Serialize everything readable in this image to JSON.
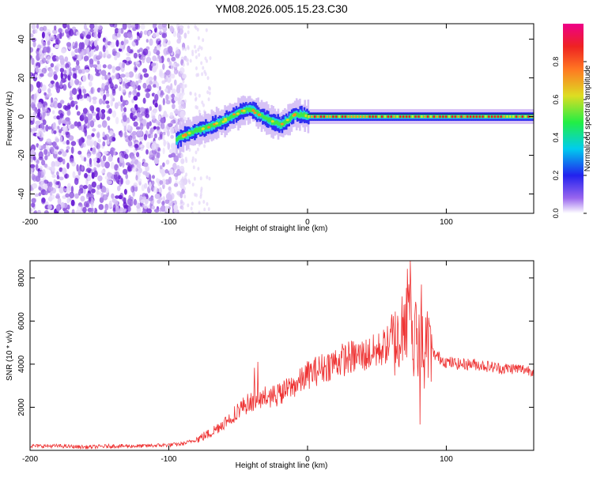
{
  "chart_data": [
    {
      "type": "heatmap",
      "title": "YM08.2026.005.15.23.C30",
      "xlabel": "Height of straight line (km)",
      "ylabel": "Frequency (Hz)",
      "xlim": [
        -200,
        163
      ],
      "ylim": [
        -50,
        48
      ],
      "xticks": [
        "-200",
        "-100",
        "0",
        "100"
      ],
      "yticks": [
        "40",
        "20",
        "0",
        "-20",
        "-40"
      ],
      "colorbar": {
        "label": "Normalized spectral amplitude",
        "range": [
          0,
          1
        ],
        "ticks": [
          "0.0",
          "0.2",
          "0.4",
          "0.6",
          "0.8"
        ]
      },
      "ridge": {
        "x": [
          -95,
          -90,
          -80,
          -70,
          -60,
          -50,
          -42,
          -35,
          -30,
          -25,
          -20,
          -15,
          -10,
          -5,
          0,
          163
        ],
        "y": [
          -12,
          -10,
          -7,
          -5,
          -2,
          2,
          4,
          1,
          -1,
          -3,
          -4,
          -2,
          1,
          1,
          0,
          0
        ]
      }
    },
    {
      "type": "line",
      "xlabel": "Height of straight line (km)",
      "ylabel": "SNR (10 * v/v)",
      "xlim": [
        -200,
        163
      ],
      "ylim": [
        0,
        8800
      ],
      "xticks": [
        "-200",
        "-100",
        "0",
        "100"
      ],
      "yticks": [
        "2000",
        "4000",
        "6000",
        "8000"
      ],
      "series": [
        {
          "name": "SNR",
          "color": "#ee3333",
          "x": [
            -200,
            -180,
            -160,
            -140,
            -120,
            -100,
            -90,
            -80,
            -70,
            -60,
            -55,
            -50,
            -45,
            -40,
            -35,
            -30,
            -25,
            -20,
            -15,
            -10,
            -5,
            0,
            10,
            20,
            30,
            40,
            50,
            55,
            60,
            65,
            70,
            72,
            74,
            76,
            78,
            80,
            82,
            84,
            86,
            90,
            100,
            110,
            120,
            130,
            140,
            150,
            163
          ],
          "values": [
            200,
            200,
            150,
            200,
            200,
            250,
            300,
            500,
            800,
            1300,
            1500,
            1900,
            2100,
            2300,
            2300,
            2500,
            2500,
            2600,
            2800,
            3000,
            3200,
            3500,
            3800,
            4100,
            4300,
            4400,
            4600,
            4800,
            5000,
            5100,
            5200,
            6500,
            8500,
            3500,
            6800,
            4500,
            6000,
            3800,
            5200,
            4500,
            4100,
            4000,
            4000,
            3900,
            3800,
            3800,
            3700
          ]
        }
      ]
    }
  ]
}
